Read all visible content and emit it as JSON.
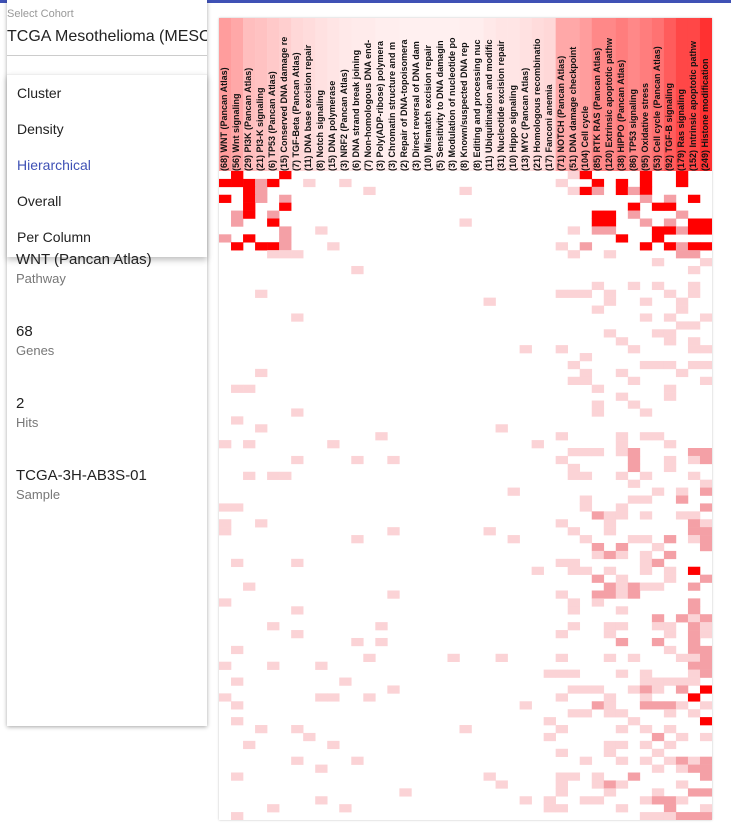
{
  "cohort": {
    "label": "Select Cohort",
    "value": "TCGA Mesothelioma (MESO)"
  },
  "menu": {
    "items": [
      {
        "label": "Cluster",
        "selected": false
      },
      {
        "label": "Density",
        "selected": false
      },
      {
        "label": "Hierarchical",
        "selected": true
      },
      {
        "label": "Overall",
        "selected": false
      },
      {
        "label": "Per Column",
        "selected": false
      }
    ]
  },
  "info": {
    "pathway": {
      "value": "WNT (Pancan Atlas)",
      "label": "Pathway"
    },
    "genes": {
      "value": "68",
      "label": "Genes"
    },
    "hits": {
      "value": "2",
      "label": "Hits"
    },
    "sample": {
      "value": "TCGA-3H-AB3S-01",
      "label": "Sample"
    }
  },
  "colors": {
    "accent": "#3f51b5",
    "heat_max": "#ff0000",
    "heat_mid": "#f4a0a6",
    "heat_low": "#fbd3d6"
  },
  "chart_data": {
    "type": "heatmap",
    "columns": [
      {
        "label": "(68) WNT (Pancan Atlas)",
        "intensity": 0.45
      },
      {
        "label": "(56) Wnt signaling",
        "intensity": 0.4
      },
      {
        "label": "(29) PI3K (Pancan Atlas)",
        "intensity": 0.3
      },
      {
        "label": "(21) PI3-K signaling",
        "intensity": 0.28
      },
      {
        "label": "(6) TP53 (Pancan Atlas)",
        "intensity": 0.25
      },
      {
        "label": "(15) Conserved DNA damage re",
        "intensity": 0.22
      },
      {
        "label": "(7) TGF-Beta (Pancan Atlas)",
        "intensity": 0.18
      },
      {
        "label": "(11) DNA base excision repair",
        "intensity": 0.16
      },
      {
        "label": "(8) Notch signaling",
        "intensity": 0.14
      },
      {
        "label": "(15) DNA polymerase",
        "intensity": 0.12
      },
      {
        "label": "(3) NRF2 (Pancan Atlas)",
        "intensity": 0.1
      },
      {
        "label": "(6) DNA strand break joining",
        "intensity": 0.09
      },
      {
        "label": "(7) Non-homologous DNA end-",
        "intensity": 0.09
      },
      {
        "label": "(3) Poly(ADP-ribose) polymera",
        "intensity": 0.08
      },
      {
        "label": "(3) Chromatin structure and m",
        "intensity": 0.08
      },
      {
        "label": "(2) Repair of DNA-topoisomera",
        "intensity": 0.07
      },
      {
        "label": "(3) Direct reversal of DNA dam",
        "intensity": 0.07
      },
      {
        "label": "(10) Mismatch excision repair",
        "intensity": 0.07
      },
      {
        "label": "(5) Sensitivity to DNA damagin",
        "intensity": 0.07
      },
      {
        "label": "(3) Modulation of nucleotide po",
        "intensity": 0.07
      },
      {
        "label": "(8) Known/suspected DNA rep",
        "intensity": 0.08
      },
      {
        "label": "(8) Editing and processing nuc",
        "intensity": 0.08
      },
      {
        "label": "(11) Ubiquitination and modific",
        "intensity": 0.1
      },
      {
        "label": "(31) Nucleotide excision repair",
        "intensity": 0.12
      },
      {
        "label": "(10) Hippo signaling",
        "intensity": 0.12
      },
      {
        "label": "(13) MYC (Pancan Atlas)",
        "intensity": 0.14
      },
      {
        "label": "(21) Homologous recombinatio",
        "intensity": 0.16
      },
      {
        "label": "(17) Fanconi anemia",
        "intensity": 0.18
      },
      {
        "label": "(71) NOTCH (Pancan Atlas)",
        "intensity": 0.4
      },
      {
        "label": "(51) DNA damage checkpoint",
        "intensity": 0.4
      },
      {
        "label": "(104) Cell cycle",
        "intensity": 0.45
      },
      {
        "label": "(85) RTK RAS (Pancan Atlas)",
        "intensity": 0.55
      },
      {
        "label": "(120) Extrinsic apoptotic pathw",
        "intensity": 0.55
      },
      {
        "label": "(38) HIPPO (Pancan Atlas)",
        "intensity": 0.6
      },
      {
        "label": "(86) TP53 signaling",
        "intensity": 0.55
      },
      {
        "label": "(95) Oxidative stress",
        "intensity": 0.6
      },
      {
        "label": "(53) Cell cycle (Pancan Atlas)",
        "intensity": 0.65
      },
      {
        "label": "(92) TGF-B signaling",
        "intensity": 0.75
      },
      {
        "label": "(179) Ras signaling",
        "intensity": 0.85
      },
      {
        "label": "(152) Intrinsic apoptotic pathw",
        "intensity": 0.85
      },
      {
        "label": "(249) Histone modification",
        "intensity": 0.95
      }
    ],
    "rows": 82
  }
}
